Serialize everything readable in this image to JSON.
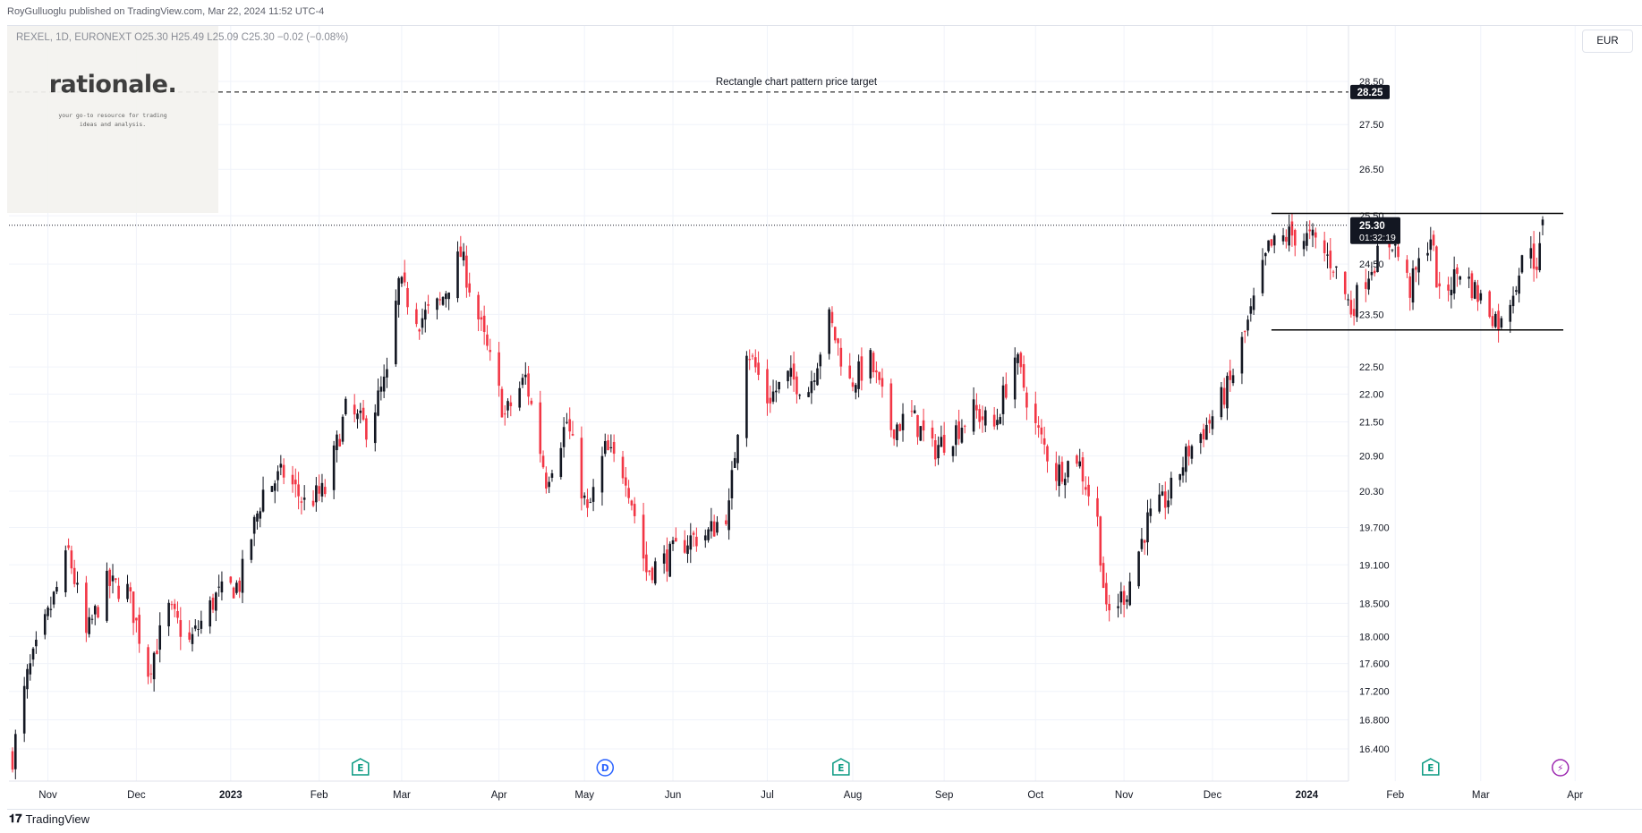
{
  "header": {
    "publisher": "RoyGulluoglu published on TradingView.com, Mar 22, 2024 11:52 UTC-4"
  },
  "legend": {
    "text": "REXEL, 1D, EURONEXT  O25.30  H25.49  L25.09  C25.30  −0.02 (−0.08%)"
  },
  "logo": {
    "name": "rationale.",
    "tagline_1": "your go-to resource for trading",
    "tagline_2": "ideas and analysis."
  },
  "currency": "EUR",
  "price_target": {
    "label": "Rectangle chart pattern price target",
    "value": 28.25,
    "value_label": "28.25"
  },
  "current_price": {
    "value": 25.3,
    "label": "25.30",
    "countdown": "01:32:19"
  },
  "footer": {
    "brand": "TradingView"
  },
  "colors": {
    "up": "#131722",
    "down": "#f23645",
    "grid": "#f0f3fa",
    "event_earnings": "#089981",
    "event_dividend": "#2962ff",
    "event_split": "#9c27b0"
  },
  "chart_data": {
    "type": "candlestick",
    "symbol": "REXEL",
    "interval": "1D",
    "exchange": "EURONEXT",
    "y_scale": "log",
    "y_ticks": [
      "28.50",
      "27.50",
      "26.50",
      "25.50",
      "24.50",
      "23.50",
      "22.50",
      "22.00",
      "21.50",
      "20.90",
      "20.30",
      "19.700",
      "19.100",
      "18.500",
      "18.000",
      "17.600",
      "17.200",
      "16.800",
      "16.400"
    ],
    "x_ticks": [
      {
        "label": "Nov",
        "bold": false
      },
      {
        "label": "Dec",
        "bold": false
      },
      {
        "label": "2023",
        "bold": true
      },
      {
        "label": "Feb",
        "bold": false
      },
      {
        "label": "Mar",
        "bold": false
      },
      {
        "label": "Apr",
        "bold": false
      },
      {
        "label": "May",
        "bold": false
      },
      {
        "label": "Jun",
        "bold": false
      },
      {
        "label": "Jul",
        "bold": false
      },
      {
        "label": "Aug",
        "bold": false
      },
      {
        "label": "Sep",
        "bold": false
      },
      {
        "label": "Oct",
        "bold": false
      },
      {
        "label": "Nov",
        "bold": false
      },
      {
        "label": "Dec",
        "bold": false
      },
      {
        "label": "2024",
        "bold": true
      },
      {
        "label": "Feb",
        "bold": false
      },
      {
        "label": "Mar",
        "bold": false
      },
      {
        "label": "Apr",
        "bold": false
      }
    ],
    "anchors": [
      [
        "2022-10-20",
        16.3
      ],
      [
        "2022-10-25",
        17.4
      ],
      [
        "2022-11-01",
        18.3
      ],
      [
        "2022-11-08",
        19.3
      ],
      [
        "2022-11-14",
        18.0
      ],
      [
        "2022-11-21",
        18.8
      ],
      [
        "2022-11-28",
        18.7
      ],
      [
        "2022-12-05",
        17.5
      ],
      [
        "2022-12-12",
        18.4
      ],
      [
        "2022-12-19",
        17.9
      ],
      [
        "2022-12-28",
        18.6
      ],
      [
        "2023-01-05",
        18.8
      ],
      [
        "2023-01-13",
        20.3
      ],
      [
        "2023-01-20",
        20.6
      ],
      [
        "2023-01-27",
        20.1
      ],
      [
        "2023-02-03",
        20.3
      ],
      [
        "2023-02-10",
        21.7
      ],
      [
        "2023-02-17",
        21.4
      ],
      [
        "2023-02-24",
        22.3
      ],
      [
        "2023-02-28",
        24.1
      ],
      [
        "2023-03-07",
        23.4
      ],
      [
        "2023-03-14",
        23.7
      ],
      [
        "2023-03-21",
        24.7
      ],
      [
        "2023-03-29",
        23.0
      ],
      [
        "2023-04-05",
        21.6
      ],
      [
        "2023-04-12",
        22.3
      ],
      [
        "2023-04-19",
        20.5
      ],
      [
        "2023-04-26",
        21.5
      ],
      [
        "2023-05-03",
        19.9
      ],
      [
        "2023-05-09",
        21.0
      ],
      [
        "2023-05-16",
        20.6
      ],
      [
        "2023-05-23",
        19.0
      ],
      [
        "2023-05-30",
        19.2
      ],
      [
        "2023-06-06",
        19.5
      ],
      [
        "2023-06-13",
        19.6
      ],
      [
        "2023-06-20",
        20.0
      ],
      [
        "2023-06-26",
        22.9
      ],
      [
        "2023-07-03",
        21.9
      ],
      [
        "2023-07-10",
        22.3
      ],
      [
        "2023-07-17",
        22.1
      ],
      [
        "2023-07-24",
        23.4
      ],
      [
        "2023-07-31",
        22.2
      ],
      [
        "2023-08-07",
        22.6
      ],
      [
        "2023-08-14",
        21.4
      ],
      [
        "2023-08-21",
        21.6
      ],
      [
        "2023-08-28",
        21.0
      ],
      [
        "2023-09-04",
        21.3
      ],
      [
        "2023-09-11",
        21.7
      ],
      [
        "2023-09-18",
        21.4
      ],
      [
        "2023-09-25",
        22.7
      ],
      [
        "2023-10-02",
        21.4
      ],
      [
        "2023-10-09",
        20.6
      ],
      [
        "2023-10-16",
        20.9
      ],
      [
        "2023-10-23",
        19.8
      ],
      [
        "2023-10-26",
        18.3
      ],
      [
        "2023-11-02",
        18.7
      ],
      [
        "2023-11-09",
        19.8
      ],
      [
        "2023-11-16",
        20.2
      ],
      [
        "2023-11-23",
        21.0
      ],
      [
        "2023-11-30",
        21.5
      ],
      [
        "2023-12-07",
        22.2
      ],
      [
        "2023-12-14",
        23.5
      ],
      [
        "2023-12-20",
        24.8
      ],
      [
        "2023-12-27",
        25.1
      ],
      [
        "2024-01-04",
        25.0
      ],
      [
        "2024-01-11",
        24.5
      ],
      [
        "2024-01-17",
        23.6
      ],
      [
        "2024-01-24",
        24.5
      ],
      [
        "2024-01-31",
        25.0
      ],
      [
        "2024-02-06",
        24.0
      ],
      [
        "2024-02-13",
        25.1
      ],
      [
        "2024-02-16",
        23.8
      ],
      [
        "2024-02-23",
        24.4
      ],
      [
        "2024-03-01",
        23.8
      ],
      [
        "2024-03-08",
        23.3
      ],
      [
        "2024-03-13",
        24.2
      ],
      [
        "2024-03-18",
        25.0
      ],
      [
        "2024-03-20",
        24.2
      ],
      [
        "2024-03-22",
        25.3
      ]
    ],
    "last_bar": {
      "open": 25.3,
      "high": 25.49,
      "low": 25.09,
      "close": 25.3,
      "change": -0.02,
      "change_pct": -0.08
    },
    "rectangle_pattern": {
      "start": "2023-12-21",
      "end": "2024-03-29",
      "top": 25.55,
      "bottom": 23.2
    },
    "events": [
      {
        "date": "2023-02-15",
        "type": "earnings",
        "label": "E"
      },
      {
        "date": "2023-05-09",
        "type": "dividend",
        "label": "D"
      },
      {
        "date": "2023-07-28",
        "type": "earnings",
        "label": "E"
      },
      {
        "date": "2024-02-13",
        "type": "earnings",
        "label": "E"
      },
      {
        "date": "2024-03-28",
        "type": "split",
        "label": "⚡"
      }
    ]
  }
}
